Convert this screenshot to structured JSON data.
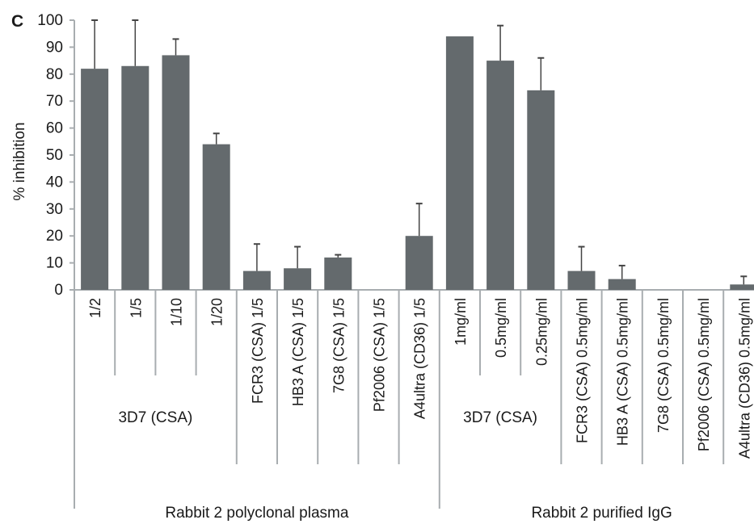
{
  "chart_data": {
    "type": "bar",
    "panel_letter": "C",
    "ylabel": "% inhibition",
    "ylim": [
      0,
      100
    ],
    "yticks": [
      0,
      10,
      20,
      30,
      40,
      50,
      60,
      70,
      80,
      90,
      100
    ],
    "bar_color": "#646a6d",
    "categories": [
      "1/2",
      "1/5",
      "1/10",
      "1/20",
      "FCR3 (CSA)  1/5",
      "HB3 A (CSA)  1/5",
      "7G8  (CSA)  1/5",
      "Pf2006  (CSA)  1/5",
      "A4ultra (CD36) 1/5",
      "1mg/ml",
      "0.5mg/ml",
      "0.25mg/ml",
      "FCR3 (CSA) 0.5mg/ml",
      "HB3 A (CSA) 0.5mg/ml",
      "7G8 (CSA) 0.5mg/ml",
      "Pf2006 (CSA) 0.5mg/ml",
      "A4ultra (CD36) 0.5mg/ml"
    ],
    "values": [
      82,
      83,
      87,
      54,
      7,
      8,
      12,
      0,
      20,
      94,
      85,
      74,
      7,
      4,
      0,
      0,
      2
    ],
    "error_upper": [
      100,
      100,
      93,
      58,
      17,
      16,
      13,
      0,
      32,
      94,
      98,
      86,
      16,
      9,
      0,
      0,
      5
    ],
    "subgroups": [
      {
        "label": "3D7 (CSA)",
        "from": 0,
        "to": 3
      },
      {
        "label": "3D7 (CSA)",
        "from": 9,
        "to": 11
      }
    ],
    "groups": [
      {
        "label": "Rabbit 2 polyclonal plasma",
        "from": 0,
        "to": 8
      },
      {
        "label": "Rabbit 2 purified IgG",
        "from": 9,
        "to": 16
      }
    ]
  }
}
